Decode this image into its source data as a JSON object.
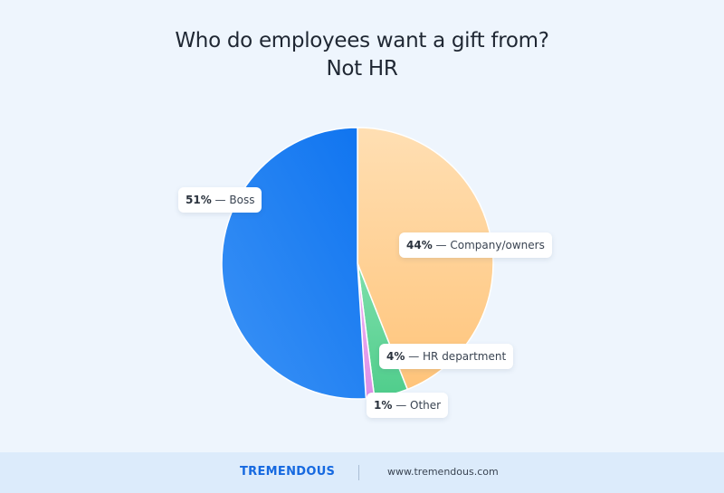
{
  "title_lines": [
    "Who do employees want a gift from?",
    "Not HR"
  ],
  "chart_data": {
    "type": "pie",
    "title": "Who do employees want a gift from? Not HR",
    "categories": [
      "Company/owners",
      "HR department",
      "Other",
      "Boss"
    ],
    "values": [
      44,
      4,
      1,
      51
    ],
    "value_labels": [
      "44%",
      "4%",
      "1%",
      "51%"
    ],
    "colors": [
      "#ffd197",
      "#62d59a",
      "#e8a3ef",
      "#1a80f2"
    ],
    "legend": "none"
  },
  "footer": {
    "brand": "TREMENDOUS",
    "url": "www.tremendous.com"
  }
}
